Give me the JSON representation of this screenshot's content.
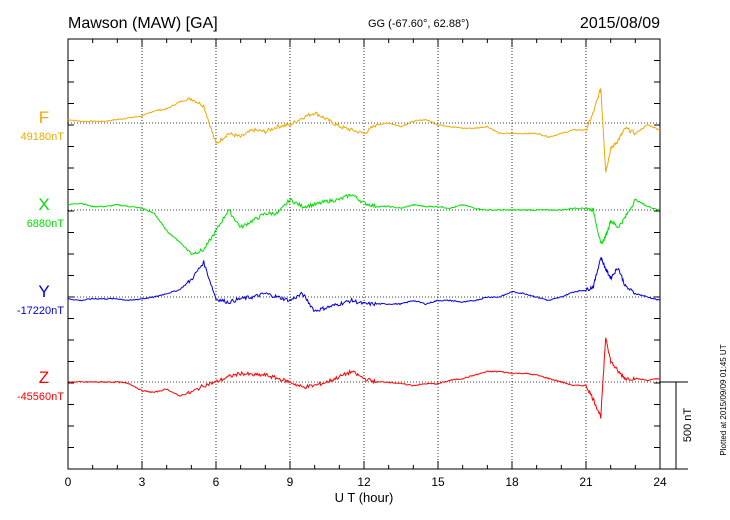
{
  "header": {
    "station": "Mawson (MAW)  [GA]",
    "coords": "GG (-67.60°,  62.88°)",
    "date": "2015/08/09"
  },
  "footer_note": "Plotted at 2015/09/09 01:45 UT",
  "scale_label": "500 nT",
  "chart_data": {
    "type": "line",
    "title": "Mawson (MAW)  [GA]",
    "xlabel": "U T (hour)",
    "ylabel": "",
    "x_ticks": [
      "0",
      "3",
      "6",
      "9",
      "12",
      "15",
      "18",
      "21",
      "24"
    ],
    "xlim": [
      0,
      24
    ],
    "grid": true,
    "scale_bar_nT": 500,
    "x": [
      0,
      0.5,
      1,
      1.5,
      2,
      2.5,
      3,
      3.5,
      4,
      4.5,
      5,
      5.5,
      6,
      6.5,
      7,
      7.5,
      8,
      8.5,
      9,
      9.5,
      10,
      10.5,
      11,
      11.5,
      12,
      12.5,
      13,
      13.5,
      14,
      14.5,
      15,
      15.5,
      16,
      16.5,
      17,
      17.5,
      18,
      18.5,
      19,
      19.5,
      20,
      20.5,
      21,
      21.3,
      21.6,
      21.8,
      22,
      22.3,
      22.6,
      23,
      23.5,
      24
    ],
    "series": [
      {
        "name": "F",
        "baseline": "49180nT",
        "color": "#f0a800",
        "values": [
          20,
          10,
          10,
          10,
          20,
          30,
          40,
          70,
          80,
          120,
          140,
          100,
          -120,
          -60,
          -80,
          -40,
          -50,
          -20,
          -10,
          30,
          60,
          20,
          -20,
          -40,
          -60,
          -10,
          0,
          -20,
          10,
          20,
          -10,
          -20,
          -30,
          -30,
          -20,
          -60,
          -60,
          -60,
          -60,
          -80,
          -60,
          -40,
          -40,
          60,
          200,
          -280,
          -150,
          -100,
          -30,
          -60,
          -10,
          -40
        ]
      },
      {
        "name": "X",
        "baseline": "6880nT",
        "color": "#00e000",
        "values": [
          30,
          40,
          20,
          20,
          30,
          20,
          10,
          -20,
          -120,
          -180,
          -250,
          -230,
          -120,
          0,
          -100,
          -60,
          -20,
          -20,
          60,
          20,
          30,
          50,
          60,
          90,
          40,
          20,
          20,
          10,
          30,
          20,
          20,
          10,
          30,
          10,
          0,
          0,
          0,
          0,
          0,
          0,
          0,
          10,
          10,
          0,
          -200,
          -150,
          -60,
          -100,
          -40,
          60,
          20,
          0
        ]
      },
      {
        "name": "Y",
        "baseline": "-17220nT",
        "color": "#0000e0",
        "values": [
          -10,
          -20,
          -10,
          -10,
          -10,
          -20,
          -10,
          0,
          20,
          40,
          100,
          200,
          -10,
          -30,
          -10,
          0,
          20,
          0,
          -20,
          20,
          -80,
          -60,
          -40,
          -20,
          -40,
          -40,
          -40,
          -40,
          -20,
          -40,
          -20,
          -20,
          -30,
          -20,
          0,
          0,
          30,
          20,
          0,
          -20,
          0,
          30,
          40,
          60,
          230,
          160,
          110,
          170,
          60,
          20,
          0,
          -20
        ]
      },
      {
        "name": "Z",
        "baseline": "-45560nT",
        "color": "#ff0000",
        "values": [
          0,
          0,
          0,
          0,
          0,
          -10,
          -50,
          -60,
          -40,
          -80,
          -60,
          -20,
          0,
          30,
          50,
          40,
          40,
          20,
          0,
          -30,
          -20,
          0,
          30,
          60,
          20,
          0,
          0,
          -10,
          -20,
          -10,
          -10,
          10,
          20,
          40,
          60,
          60,
          50,
          50,
          40,
          20,
          0,
          -20,
          -20,
          -100,
          -200,
          260,
          120,
          60,
          20,
          20,
          10,
          20
        ]
      }
    ]
  }
}
